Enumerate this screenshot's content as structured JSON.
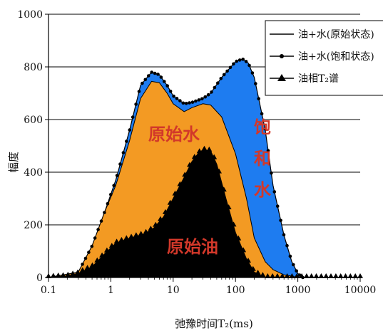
{
  "chart_data": {
    "type": "area",
    "xscale": "log",
    "xlim": [
      0.1,
      10000
    ],
    "ylim": [
      0,
      1000
    ],
    "xticks": [
      "0.1",
      "1",
      "10",
      "100",
      "1000",
      "10000"
    ],
    "yticks": [
      "0",
      "200",
      "400",
      "600",
      "800",
      "1000"
    ],
    "xlabel": "弛豫时间T₂(ms)",
    "ylabel": "幅度",
    "grid": "horizontal",
    "legend_position": "top-right",
    "region_labels": {
      "oil": "原始油",
      "water": "原始水",
      "saturated": "饱和水"
    },
    "series": [
      {
        "name": "油+水(原始状态)",
        "marker": "line",
        "fill": "#f39a23",
        "x": [
          0.1,
          0.3,
          0.5,
          0.8,
          1.2,
          2.0,
          3.0,
          4.5,
          6.0,
          8.0,
          10,
          15,
          20,
          30,
          40,
          60,
          100,
          150,
          200,
          300,
          400,
          600,
          800,
          1000
        ],
        "y": [
          0,
          20,
          120,
          250,
          350,
          520,
          680,
          745,
          740,
          700,
          660,
          630,
          645,
          660,
          655,
          610,
          470,
          300,
          150,
          60,
          30,
          10,
          5,
          0
        ]
      },
      {
        "name": "油+水(饱和状态)",
        "marker": "dot",
        "fill": "#1e7cf0",
        "x": [
          0.1,
          0.3,
          0.5,
          0.8,
          1.2,
          2.0,
          3.0,
          4.5,
          6.0,
          8.0,
          10,
          15,
          20,
          30,
          40,
          60,
          100,
          130,
          160,
          200,
          300,
          400,
          600,
          800,
          1000,
          1200
        ],
        "y": [
          0,
          20,
          120,
          250,
          370,
          560,
          730,
          780,
          770,
          730,
          690,
          660,
          665,
          680,
          700,
          760,
          820,
          830,
          815,
          760,
          560,
          350,
          160,
          60,
          15,
          0
        ]
      },
      {
        "name": "油相T₂谱",
        "marker": "triangle",
        "fill": "#000000",
        "x": [
          0.1,
          0.2,
          0.3,
          0.5,
          0.8,
          1.2,
          1.8,
          2.5,
          3.5,
          5.0,
          7.0,
          10,
          15,
          20,
          25,
          30,
          40,
          50,
          70,
          100,
          150,
          200,
          300,
          1000,
          10000
        ],
        "y": [
          0,
          5,
          15,
          40,
          90,
          130,
          145,
          155,
          165,
          190,
          230,
          300,
          380,
          440,
          470,
          485,
          480,
          430,
          300,
          170,
          70,
          20,
          0,
          0,
          0
        ]
      }
    ]
  }
}
